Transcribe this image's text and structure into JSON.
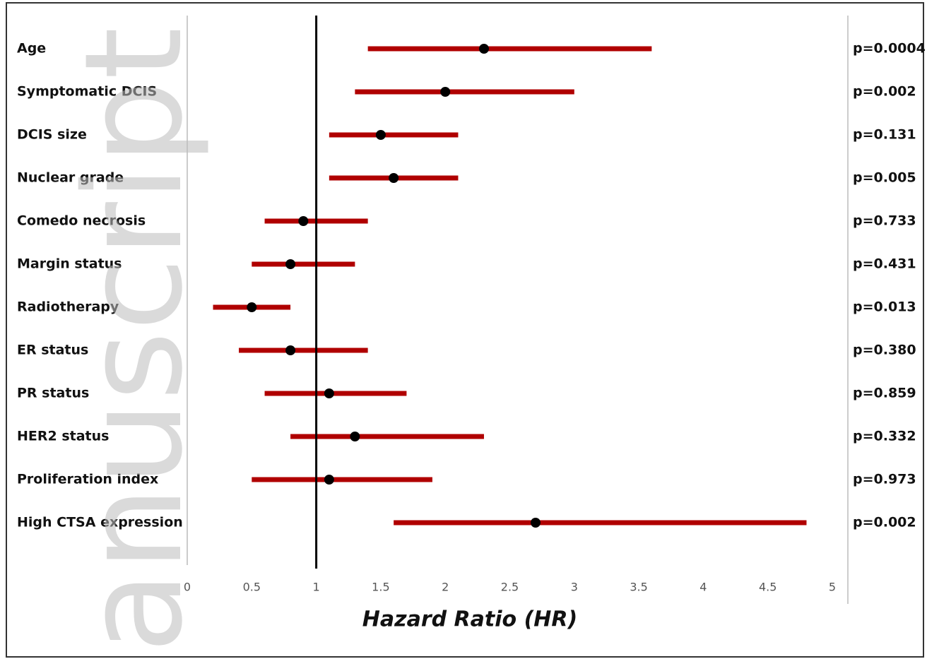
{
  "chart_data": {
    "type": "forest",
    "categories": [
      "Age",
      "Symptomatic DCIS",
      "DCIS size",
      "Nuclear grade",
      "Comedo necrosis",
      "Margin status",
      "Radiotherapy",
      "ER status",
      "PR status",
      "HER2 status",
      "Proliferation index",
      "High CTSA expression"
    ],
    "values": [
      2.3,
      2.0,
      1.5,
      1.6,
      0.9,
      0.8,
      0.5,
      0.8,
      1.1,
      1.3,
      1.1,
      2.7
    ],
    "ci_lower": [
      1.4,
      1.3,
      1.1,
      1.1,
      0.6,
      0.5,
      0.2,
      0.4,
      0.6,
      0.8,
      0.5,
      1.6
    ],
    "ci_upper": [
      3.6,
      3.0,
      2.1,
      2.1,
      1.4,
      1.3,
      0.8,
      1.4,
      1.7,
      2.3,
      1.9,
      4.8
    ],
    "p_labels": [
      "p=0.0004",
      "p=0.002",
      "p=0.131",
      "p=0.005",
      "p=0.733",
      "p=0.431",
      "p=0.013",
      "p=0.380",
      "p=0.859",
      "p=0.332",
      "p=0.973",
      "p=0.002"
    ],
    "ci_color": "#b00000",
    "point_color": "#000000",
    "reference_line": 1,
    "xlabel": "Hazard Ratio (HR)",
    "xlim": [
      0,
      5
    ],
    "xticks": [
      0,
      0.5,
      1,
      1.5,
      2,
      2.5,
      3,
      3.5,
      4,
      4.5,
      5
    ],
    "watermark": "anuscript"
  }
}
